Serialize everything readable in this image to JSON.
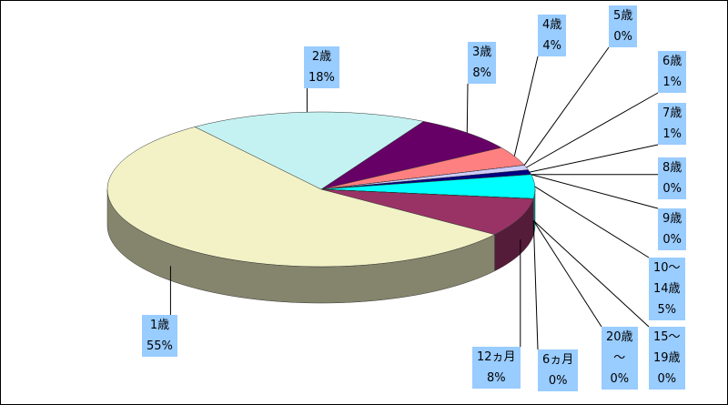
{
  "chart_data": {
    "type": "pie3d",
    "categories": [
      "6ヵ月",
      "12ヵ月",
      "1歳",
      "2歳",
      "3歳",
      "4歳",
      "5歳",
      "6歳",
      "7歳",
      "8歳",
      "9歳",
      "10～\n14歳",
      "15～\n19歳",
      "20歳\n～"
    ],
    "values": [
      0,
      8,
      55,
      18,
      8,
      4,
      0,
      1,
      1,
      0,
      0,
      5,
      0,
      0
    ],
    "value_labels": [
      "0%",
      "8%",
      "55%",
      "18%",
      "8%",
      "4%",
      "0%",
      "1%",
      "1%",
      "0%",
      "0%",
      "5%",
      "0%",
      "0%"
    ],
    "colors": [
      "#3366cc",
      "#993366",
      "#f2f2c6",
      "#c4f2f2",
      "#660066",
      "#ff8080",
      "#0066cc",
      "#ccccff",
      "#000080",
      "#000080",
      "#6666cc",
      "#00ffff",
      "#339966",
      "#cc99ff"
    ]
  }
}
